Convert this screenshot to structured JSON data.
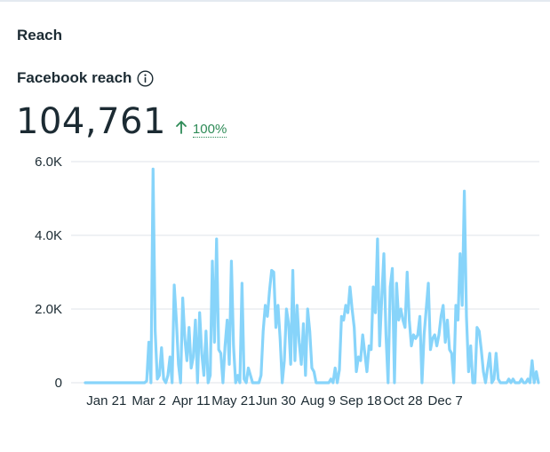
{
  "section": {
    "title": "Reach"
  },
  "metric": {
    "title": "Facebook reach",
    "value": "104,761",
    "change": "100%",
    "change_direction": "up"
  },
  "colors": {
    "line": "#87d4fa",
    "grid": "#dfe3e8",
    "text": "#1c2b33",
    "positive": "#2e8b57"
  },
  "icons": {
    "info": "info-icon",
    "trend": "arrow-up-icon"
  },
  "chart_data": {
    "type": "line",
    "title": "",
    "xlabel": "",
    "ylabel": "",
    "x_start": "Jan 1",
    "x_step_days": 2,
    "ylim": [
      0,
      6000
    ],
    "y_ticks": [
      0,
      2000,
      4000,
      6000
    ],
    "y_tick_labels": [
      "0",
      "2.0K",
      "4.0K",
      "6.0K"
    ],
    "x_tick_labels": [
      "Jan 21",
      "Mar 2",
      "Apr 11",
      "May 21",
      "Jun 30",
      "Aug 9",
      "Sep 18",
      "Oct 28",
      "Dec 7"
    ],
    "x_tick_index": [
      10,
      30,
      50,
      70,
      90,
      110,
      130,
      150,
      170
    ],
    "grid": true,
    "series": [
      {
        "name": "Facebook reach",
        "values": [
          0,
          0,
          0,
          0,
          0,
          0,
          0,
          0,
          0,
          0,
          0,
          0,
          0,
          0,
          0,
          0,
          0,
          0,
          0,
          0,
          0,
          0,
          0,
          0,
          0,
          0,
          0,
          0,
          0,
          50,
          1100,
          0,
          5800,
          1400,
          100,
          200,
          950,
          100,
          0,
          200,
          700,
          0,
          2650,
          1700,
          500,
          0,
          2300,
          1200,
          600,
          1500,
          400,
          700,
          1700,
          0,
          1900,
          800,
          200,
          1400,
          0,
          200,
          3300,
          1100,
          3900,
          900,
          800,
          0,
          1000,
          1700,
          500,
          3300,
          1000,
          0,
          200,
          0,
          2700,
          100,
          0,
          400,
          200,
          0,
          0,
          0,
          0,
          200,
          1400,
          2100,
          1800,
          2500,
          3050,
          3000,
          1500,
          2100,
          1200,
          0,
          600,
          2000,
          1600,
          500,
          3050,
          600,
          2100,
          1100,
          500,
          1600,
          200,
          2000,
          1400,
          400,
          300,
          0,
          0,
          0,
          0,
          0,
          0,
          0,
          100,
          0,
          400,
          0,
          350,
          1800,
          1700,
          2100,
          1900,
          2600,
          2000,
          1500,
          300,
          700,
          600,
          1300,
          800,
          300,
          1000,
          900,
          2600,
          1900,
          3900,
          1000,
          2300,
          3500,
          1300,
          0,
          2600,
          3100,
          0,
          2700,
          1700,
          2000,
          1700,
          1500,
          3000,
          1700,
          1000,
          1300,
          1200,
          1300,
          1800,
          0,
          1300,
          2000,
          2700,
          900,
          1200,
          1300,
          1000,
          1300,
          1800,
          2100,
          1100,
          1700,
          900,
          800,
          0,
          2100,
          1700,
          3500,
          2100,
          5200,
          1800,
          300,
          1000,
          0,
          0,
          1500,
          1400,
          900,
          300,
          0,
          400,
          800,
          0,
          100,
          800,
          100,
          0,
          0,
          0,
          0,
          100,
          0,
          100,
          0,
          0,
          0,
          100,
          0,
          0,
          100,
          0,
          600,
          0,
          300,
          0
        ]
      }
    ]
  }
}
